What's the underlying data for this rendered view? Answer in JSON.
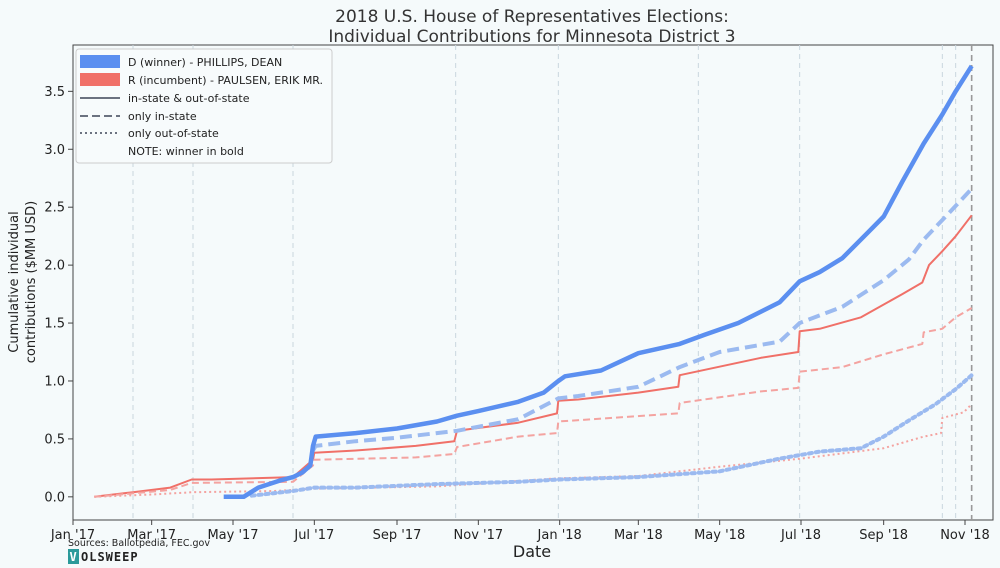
{
  "chart_data": {
    "type": "line",
    "title": "2018 U.S. House of Representatives Elections:",
    "subtitle": "Individual Contributions for Minnesota District 3",
    "xlabel": "Date",
    "ylabel_line1": "Cumulative individual",
    "ylabel_line2": "contributions ($MM USD)",
    "xlim": [
      "2017-01-01",
      "2018-11-22"
    ],
    "ylim": [
      -0.2,
      3.9
    ],
    "x_ticks": [
      {
        "date": "2017-01-01",
        "label": "Jan '17"
      },
      {
        "date": "2017-03-01",
        "label": "Mar '17"
      },
      {
        "date": "2017-05-01",
        "label": "May '17"
      },
      {
        "date": "2017-07-01",
        "label": "Jul '17"
      },
      {
        "date": "2017-09-01",
        "label": "Sep '17"
      },
      {
        "date": "2017-11-01",
        "label": "Nov '17"
      },
      {
        "date": "2018-01-01",
        "label": "Jan '18"
      },
      {
        "date": "2018-03-01",
        "label": "Mar '18"
      },
      {
        "date": "2018-05-01",
        "label": "May '18"
      },
      {
        "date": "2018-07-01",
        "label": "Jul '18"
      },
      {
        "date": "2018-09-01",
        "label": "Sep '18"
      },
      {
        "date": "2018-11-01",
        "label": "Nov '18"
      }
    ],
    "y_ticks": [
      {
        "value": 0.0,
        "label": "0.0"
      },
      {
        "value": 0.5,
        "label": "0.5"
      },
      {
        "value": 1.0,
        "label": "1.0"
      },
      {
        "value": 1.5,
        "label": "1.5"
      },
      {
        "value": 2.0,
        "label": "2.0"
      },
      {
        "value": 2.5,
        "label": "2.5"
      },
      {
        "value": 3.0,
        "label": "3.0"
      },
      {
        "value": 3.5,
        "label": "3.5"
      }
    ],
    "event_lines": [
      "2017-02-15",
      "2017-04-01",
      "2017-06-15",
      "2017-10-15",
      "2017-12-31",
      "2018-04-15",
      "2018-06-30",
      "2018-10-15",
      "2018-10-25"
    ],
    "election_day": "2018-11-06",
    "grid": false,
    "legend_position": "top-left",
    "legend": {
      "d_patch": "D (winner) - PHILLIPS, DEAN",
      "r_patch": "R (incumbent) - PAULSEN, ERIK MR.",
      "solid": "in-state & out-of-state",
      "dashed": "only in-state",
      "dotted": "only out-of-state",
      "note": "NOTE: winner in bold"
    },
    "colors": {
      "D": "#5b8ff0",
      "R": "#f07068",
      "D_light": "#9bbaf0",
      "R_light": "#f4a3a0",
      "legend_gray": "#6b7280"
    },
    "series": [
      {
        "party": "D",
        "style": "solid",
        "bold": true,
        "points": [
          [
            "2017-04-24",
            0.0
          ],
          [
            "2017-05-09",
            0.0
          ],
          [
            "2017-05-20",
            0.08
          ],
          [
            "2017-06-05",
            0.14
          ],
          [
            "2017-06-15",
            0.17
          ],
          [
            "2017-06-22",
            0.21
          ],
          [
            "2017-06-28",
            0.27
          ],
          [
            "2017-06-30",
            0.44
          ],
          [
            "2017-07-02",
            0.52
          ],
          [
            "2017-08-01",
            0.55
          ],
          [
            "2017-09-01",
            0.59
          ],
          [
            "2017-10-01",
            0.65
          ],
          [
            "2017-10-16",
            0.7
          ],
          [
            "2017-11-01",
            0.74
          ],
          [
            "2017-12-01",
            0.82
          ],
          [
            "2017-12-20",
            0.9
          ],
          [
            "2017-12-31",
            1.0
          ],
          [
            "2018-01-05",
            1.04
          ],
          [
            "2018-02-01",
            1.09
          ],
          [
            "2018-03-01",
            1.24
          ],
          [
            "2018-04-01",
            1.32
          ],
          [
            "2018-04-20",
            1.4
          ],
          [
            "2018-05-15",
            1.5
          ],
          [
            "2018-06-15",
            1.68
          ],
          [
            "2018-06-30",
            1.86
          ],
          [
            "2018-07-15",
            1.94
          ],
          [
            "2018-08-01",
            2.06
          ],
          [
            "2018-08-20",
            2.28
          ],
          [
            "2018-09-01",
            2.42
          ],
          [
            "2018-09-15",
            2.72
          ],
          [
            "2018-10-01",
            3.05
          ],
          [
            "2018-10-15",
            3.3
          ],
          [
            "2018-10-25",
            3.5
          ],
          [
            "2018-11-06",
            3.72
          ]
        ]
      },
      {
        "party": "D",
        "style": "dashed",
        "bold": true,
        "points": [
          [
            "2017-06-30",
            0.4
          ],
          [
            "2017-07-02",
            0.44
          ],
          [
            "2017-08-01",
            0.48
          ],
          [
            "2017-09-01",
            0.51
          ],
          [
            "2017-10-16",
            0.57
          ],
          [
            "2017-12-01",
            0.67
          ],
          [
            "2017-12-31",
            0.85
          ],
          [
            "2018-01-15",
            0.87
          ],
          [
            "2018-03-01",
            0.95
          ],
          [
            "2018-04-01",
            1.12
          ],
          [
            "2018-05-01",
            1.25
          ],
          [
            "2018-06-15",
            1.34
          ],
          [
            "2018-06-30",
            1.5
          ],
          [
            "2018-08-01",
            1.64
          ],
          [
            "2018-09-01",
            1.87
          ],
          [
            "2018-09-20",
            2.05
          ],
          [
            "2018-10-01",
            2.22
          ],
          [
            "2018-10-20",
            2.45
          ],
          [
            "2018-11-06",
            2.66
          ]
        ]
      },
      {
        "party": "D",
        "style": "dotted",
        "bold": true,
        "points": [
          [
            "2017-05-15",
            0.01
          ],
          [
            "2017-06-15",
            0.05
          ],
          [
            "2017-07-01",
            0.08
          ],
          [
            "2017-08-01",
            0.08
          ],
          [
            "2017-10-01",
            0.11
          ],
          [
            "2017-12-01",
            0.13
          ],
          [
            "2018-01-01",
            0.15
          ],
          [
            "2018-03-01",
            0.17
          ],
          [
            "2018-05-01",
            0.22
          ],
          [
            "2018-06-15",
            0.33
          ],
          [
            "2018-07-15",
            0.39
          ],
          [
            "2018-08-15",
            0.42
          ],
          [
            "2018-09-01",
            0.52
          ],
          [
            "2018-09-20",
            0.66
          ],
          [
            "2018-10-10",
            0.8
          ],
          [
            "2018-10-25",
            0.93
          ],
          [
            "2018-11-06",
            1.05
          ]
        ]
      },
      {
        "party": "R",
        "style": "solid",
        "bold": false,
        "points": [
          [
            "2017-01-17",
            0.0
          ],
          [
            "2017-02-15",
            0.04
          ],
          [
            "2017-03-15",
            0.08
          ],
          [
            "2017-03-31",
            0.15
          ],
          [
            "2017-04-15",
            0.15
          ],
          [
            "2017-06-15",
            0.17
          ],
          [
            "2017-06-30",
            0.32
          ],
          [
            "2017-07-01",
            0.38
          ],
          [
            "2017-08-01",
            0.4
          ],
          [
            "2017-09-15",
            0.44
          ],
          [
            "2017-10-14",
            0.48
          ],
          [
            "2017-10-16",
            0.57
          ],
          [
            "2017-12-01",
            0.64
          ],
          [
            "2017-12-30",
            0.72
          ],
          [
            "2017-12-31",
            0.83
          ],
          [
            "2018-01-15",
            0.84
          ],
          [
            "2018-03-01",
            0.9
          ],
          [
            "2018-03-31",
            0.95
          ],
          [
            "2018-04-01",
            1.05
          ],
          [
            "2018-06-01",
            1.2
          ],
          [
            "2018-06-29",
            1.25
          ],
          [
            "2018-06-30",
            1.43
          ],
          [
            "2018-07-15",
            1.45
          ],
          [
            "2018-08-15",
            1.55
          ],
          [
            "2018-09-15",
            1.75
          ],
          [
            "2018-09-30",
            1.85
          ],
          [
            "2018-10-05",
            2.0
          ],
          [
            "2018-10-15",
            2.12
          ],
          [
            "2018-10-25",
            2.25
          ],
          [
            "2018-11-06",
            2.43
          ]
        ]
      },
      {
        "party": "R",
        "style": "dashed",
        "bold": false,
        "points": [
          [
            "2017-01-17",
            0.0
          ],
          [
            "2017-02-15",
            0.03
          ],
          [
            "2017-03-15",
            0.06
          ],
          [
            "2017-03-31",
            0.12
          ],
          [
            "2017-06-15",
            0.13
          ],
          [
            "2017-06-30",
            0.27
          ],
          [
            "2017-07-01",
            0.32
          ],
          [
            "2017-09-15",
            0.34
          ],
          [
            "2017-10-14",
            0.37
          ],
          [
            "2017-10-16",
            0.43
          ],
          [
            "2017-12-01",
            0.52
          ],
          [
            "2017-12-30",
            0.55
          ],
          [
            "2017-12-31",
            0.65
          ],
          [
            "2018-03-31",
            0.72
          ],
          [
            "2018-04-01",
            0.81
          ],
          [
            "2018-06-01",
            0.91
          ],
          [
            "2018-06-29",
            0.94
          ],
          [
            "2018-06-30",
            1.08
          ],
          [
            "2018-08-01",
            1.12
          ],
          [
            "2018-09-01",
            1.23
          ],
          [
            "2018-09-30",
            1.32
          ],
          [
            "2018-10-01",
            1.42
          ],
          [
            "2018-10-15",
            1.45
          ],
          [
            "2018-10-25",
            1.55
          ],
          [
            "2018-11-06",
            1.63
          ]
        ]
      },
      {
        "party": "R",
        "style": "dotted",
        "bold": false,
        "points": [
          [
            "2017-01-17",
            0.0
          ],
          [
            "2017-03-01",
            0.02
          ],
          [
            "2017-04-01",
            0.04
          ],
          [
            "2017-06-01",
            0.05
          ],
          [
            "2017-07-01",
            0.07
          ],
          [
            "2017-10-01",
            0.09
          ],
          [
            "2017-12-31",
            0.16
          ],
          [
            "2018-03-01",
            0.18
          ],
          [
            "2018-05-01",
            0.26
          ],
          [
            "2018-07-01",
            0.33
          ],
          [
            "2018-09-01",
            0.42
          ],
          [
            "2018-10-01",
            0.52
          ],
          [
            "2018-10-14",
            0.55
          ],
          [
            "2018-10-15",
            0.68
          ],
          [
            "2018-10-31",
            0.73
          ],
          [
            "2018-11-06",
            0.8
          ]
        ]
      }
    ],
    "sources": "Sources: Ballotpedia, FEC.gov",
    "logo_box": "V",
    "logo_rest": "OLSWEEP"
  }
}
